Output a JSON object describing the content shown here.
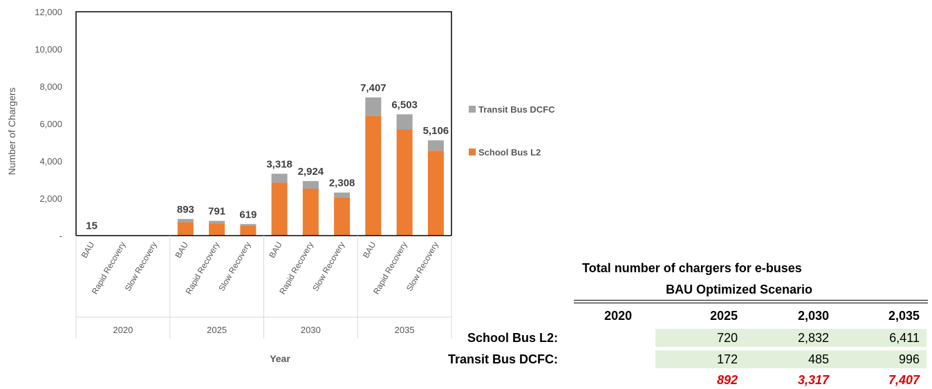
{
  "chart_data": {
    "type": "bar",
    "stacked": true,
    "ylabel": "Number of Chargers",
    "xlabel": "Year",
    "ylim": [
      0,
      12000
    ],
    "yticks": [
      "-",
      "2,000",
      "4,000",
      "6,000",
      "8,000",
      "10,000",
      "12,000"
    ],
    "groups": [
      "2020",
      "2025",
      "2030",
      "2035"
    ],
    "categories": [
      "BAU",
      "Rapid Recovery",
      "Slow Recovery",
      "BAU",
      "Rapid Recovery",
      "Slow Recovery",
      "BAU",
      "Rapid Recovery",
      "Slow Recovery",
      "BAU",
      "Rapid Recovery",
      "Slow Recovery"
    ],
    "series": [
      {
        "name": "School Bus L2",
        "color": "#ed7d31",
        "values": [
          0,
          0,
          0,
          720,
          650,
          520,
          2832,
          2520,
          2050,
          6411,
          5700,
          4550
        ]
      },
      {
        "name": "Transit Bus DCFC",
        "color": "#a5a5a5",
        "values": [
          15,
          0,
          0,
          172,
          141,
          99,
          485,
          404,
          258,
          996,
          803,
          556
        ]
      }
    ],
    "totals": [
      "15",
      "",
      "",
      "893",
      "791",
      "619",
      "3,318",
      "2,924",
      "2,308",
      "7,407",
      "6,503",
      "5,106"
    ],
    "grid": false,
    "legend": "right"
  },
  "summary": {
    "title": "Total number of chargers for e-buses",
    "subtitle": "BAU Optimized Scenario",
    "columns": [
      "2020",
      "2025",
      "2,030",
      "2,035"
    ],
    "rows": [
      {
        "label": "School Bus L2:",
        "values": [
          "",
          "720",
          "2,832",
          "6,411"
        ]
      },
      {
        "label": "Transit Bus DCFC:",
        "values": [
          "",
          "172",
          "485",
          "996"
        ]
      }
    ],
    "totals": [
      "",
      "892",
      "3,317",
      "7,407"
    ]
  }
}
